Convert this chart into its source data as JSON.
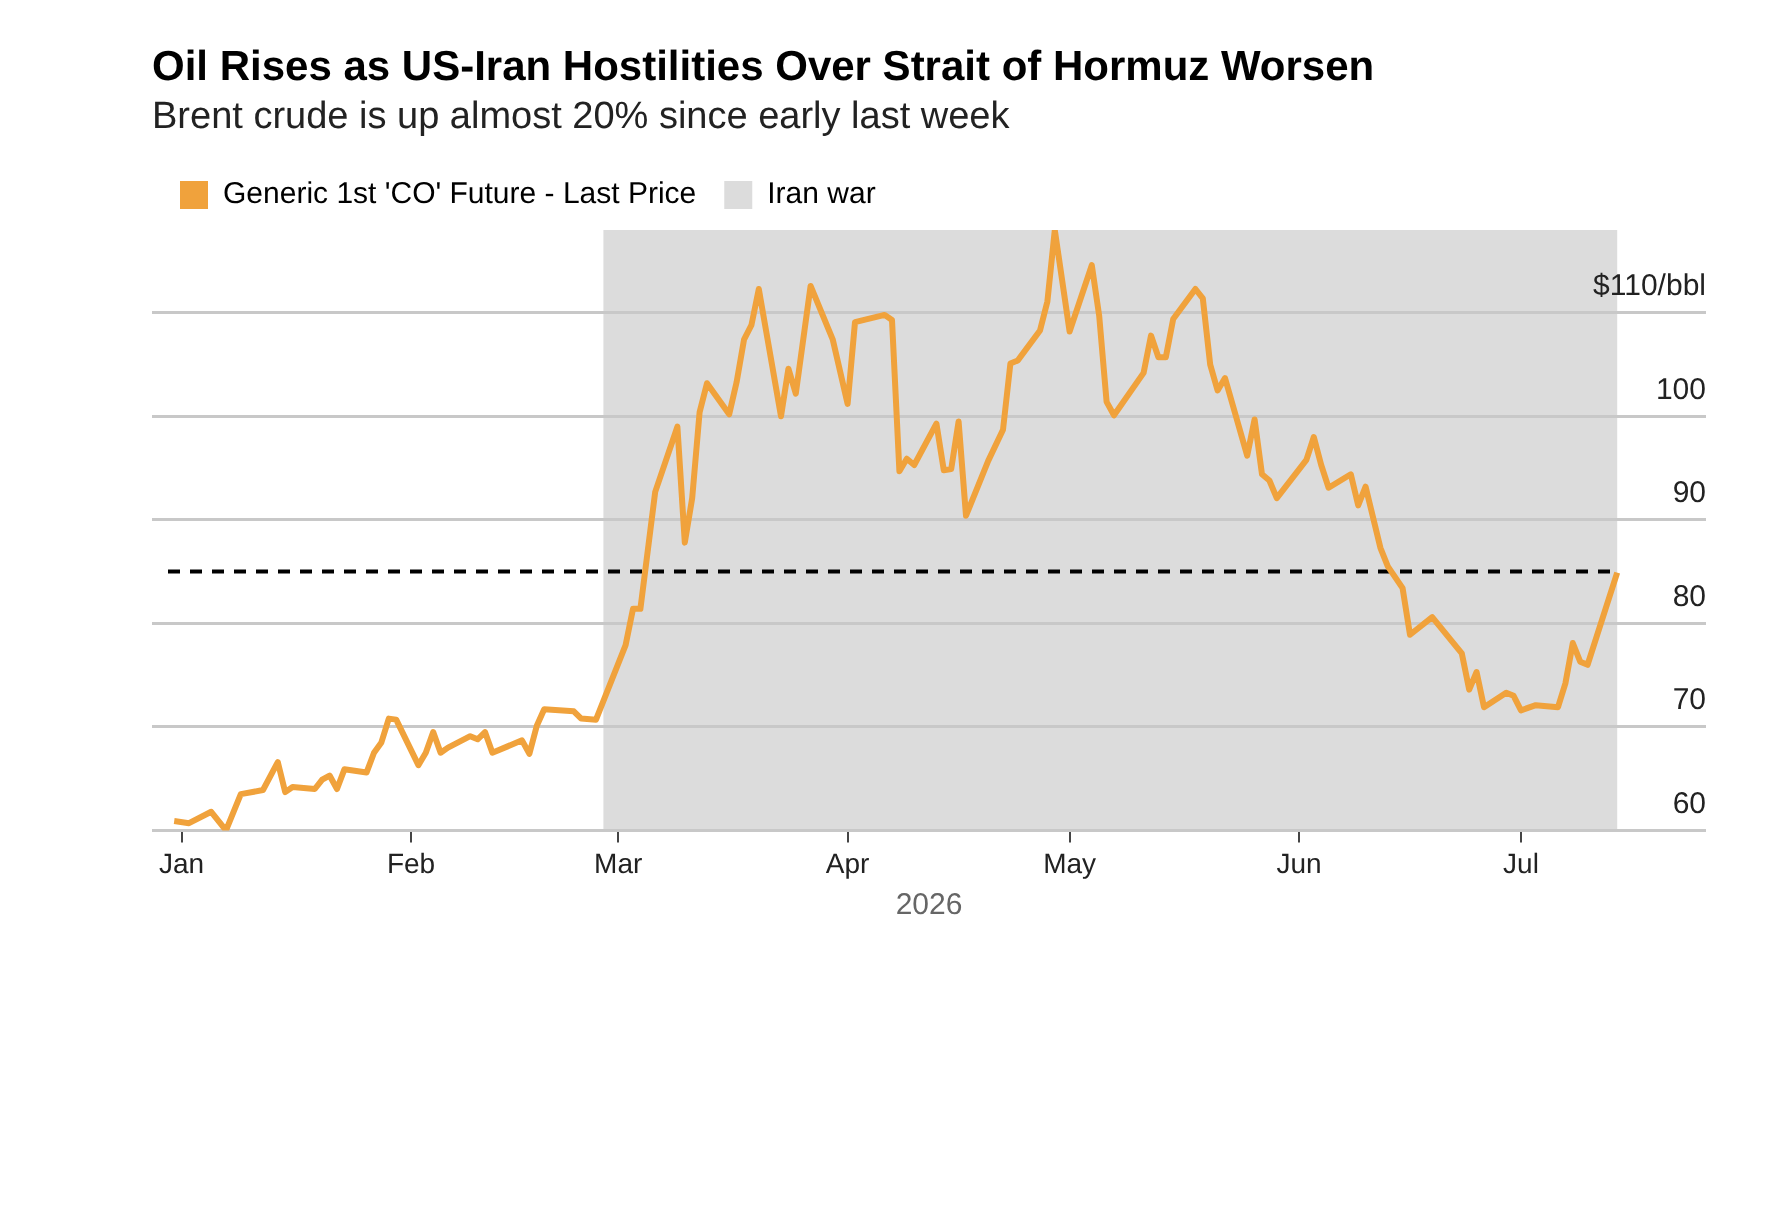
{
  "chart_data": {
    "type": "line",
    "title": "Oil Rises as US-Iran Hostilities Over Strait of Hormuz Worsen",
    "subtitle": "Brent crude is up almost 20% since early last week",
    "xlabel": "2026",
    "x": [
      "2025-12-31",
      "2026-01-02",
      "2026-01-05",
      "2026-01-07",
      "2026-01-09",
      "2026-01-12",
      "2026-01-14",
      "2026-01-15",
      "2026-01-16",
      "2026-01-19",
      "2026-01-20",
      "2026-01-21",
      "2026-01-22",
      "2026-01-23",
      "2026-01-26",
      "2026-01-27",
      "2026-01-28",
      "2026-01-29",
      "2026-01-30",
      "2026-02-02",
      "2026-02-03",
      "2026-02-04",
      "2026-02-05",
      "2026-02-06",
      "2026-02-09",
      "2026-02-10",
      "2026-02-11",
      "2026-02-12",
      "2026-02-16",
      "2026-02-17",
      "2026-02-18",
      "2026-02-19",
      "2026-02-23",
      "2026-02-24",
      "2026-02-26",
      "2026-03-02",
      "2026-03-03",
      "2026-03-04",
      "2026-03-06",
      "2026-03-09",
      "2026-03-10",
      "2026-03-11",
      "2026-03-12",
      "2026-03-13",
      "2026-03-16",
      "2026-03-17",
      "2026-03-18",
      "2026-03-19",
      "2026-03-20",
      "2026-03-23",
      "2026-03-24",
      "2026-03-25",
      "2026-03-27",
      "2026-03-30",
      "2026-04-01",
      "2026-04-02",
      "2026-04-06",
      "2026-04-07",
      "2026-04-08",
      "2026-04-09",
      "2026-04-10",
      "2026-04-13",
      "2026-04-14",
      "2026-04-15",
      "2026-04-16",
      "2026-04-17",
      "2026-04-20",
      "2026-04-22",
      "2026-04-23",
      "2026-04-24",
      "2026-04-27",
      "2026-04-28",
      "2026-04-29",
      "2026-05-01",
      "2026-05-04",
      "2026-05-05",
      "2026-05-06",
      "2026-05-07",
      "2026-05-11",
      "2026-05-12",
      "2026-05-13",
      "2026-05-14",
      "2026-05-15",
      "2026-05-18",
      "2026-05-19",
      "2026-05-20",
      "2026-05-21",
      "2026-05-22",
      "2026-05-25",
      "2026-05-26",
      "2026-05-27",
      "2026-05-28",
      "2026-05-29",
      "2026-06-02",
      "2026-06-03",
      "2026-06-04",
      "2026-06-05",
      "2026-06-08",
      "2026-06-09",
      "2026-06-10",
      "2026-06-12",
      "2026-06-13",
      "2026-06-15",
      "2026-06-16",
      "2026-06-19",
      "2026-06-23",
      "2026-06-24",
      "2026-06-25",
      "2026-06-26",
      "2026-06-29",
      "2026-06-30",
      "2026-07-01",
      "2026-07-03",
      "2026-07-06",
      "2026-07-07",
      "2026-07-08",
      "2026-07-09",
      "2026-07-10",
      "2026-07-14"
    ],
    "series": [
      {
        "name": "Generic 1st 'CO' Future - Last Price",
        "color": "#f0a23c",
        "values": [
          60.9,
          60.7,
          61.8,
          60.0,
          63.5,
          63.9,
          66.6,
          63.7,
          64.2,
          64.0,
          64.9,
          65.3,
          64.0,
          65.9,
          65.6,
          67.5,
          68.5,
          70.8,
          70.7,
          66.3,
          67.5,
          69.5,
          67.5,
          68.0,
          69.1,
          68.8,
          69.5,
          67.5,
          68.7,
          67.4,
          70.1,
          71.7,
          71.5,
          70.8,
          70.7,
          77.9,
          81.4,
          81.4,
          92.7,
          99.0,
          87.8,
          92.1,
          100.4,
          103.2,
          100.2,
          103.3,
          107.4,
          108.8,
          112.3,
          100.0,
          104.6,
          102.2,
          112.6,
          107.4,
          101.2,
          109.1,
          109.8,
          109.3,
          94.7,
          95.9,
          95.3,
          99.3,
          94.8,
          94.9,
          99.5,
          90.4,
          95.7,
          98.7,
          105.1,
          105.4,
          108.3,
          111.1,
          118.0,
          108.2,
          114.6,
          109.7,
          101.4,
          100.1,
          104.2,
          107.8,
          105.7,
          105.7,
          109.4,
          112.3,
          111.4,
          105.0,
          102.5,
          103.7,
          96.2,
          99.7,
          94.4,
          93.8,
          92.1,
          95.8,
          98.0,
          95.3,
          93.1,
          94.4,
          91.4,
          93.2,
          87.3,
          85.5,
          83.4,
          78.9,
          80.6,
          77.1,
          73.6,
          75.3,
          71.9,
          73.3,
          73.0,
          71.6,
          72.1,
          71.9,
          74.2,
          78.1,
          76.3,
          76.0,
          84.9
        ]
      }
    ],
    "xlim": [
      "2025-12-28",
      "2026-07-26"
    ],
    "xticks": [
      {
        "value": "2026-01-01",
        "label": "Jan"
      },
      {
        "value": "2026-02-01",
        "label": "Feb"
      },
      {
        "value": "2026-03-01",
        "label": "Mar"
      },
      {
        "value": "2026-04-01",
        "label": "Apr"
      },
      {
        "value": "2026-05-01",
        "label": "May"
      },
      {
        "value": "2026-06-01",
        "label": "Jun"
      },
      {
        "value": "2026-07-01",
        "label": "Jul"
      }
    ],
    "ylim": [
      60,
      118
    ],
    "yticks": [
      60,
      70,
      80,
      90,
      100,
      {
        "value": 110,
        "label": "$110/bbl"
      }
    ],
    "bands": [
      {
        "axis": "x",
        "from": "2026-02-27",
        "to": "2026-07-14",
        "label": "Iran war",
        "color": "#dcdcdc"
      }
    ],
    "ref_lines": [
      {
        "axis": "y",
        "value": 85,
        "color": "#000000",
        "line_style": "dashed"
      }
    ],
    "grid": "y",
    "legend": "top left",
    "marker": "none",
    "line_style": "solid"
  }
}
